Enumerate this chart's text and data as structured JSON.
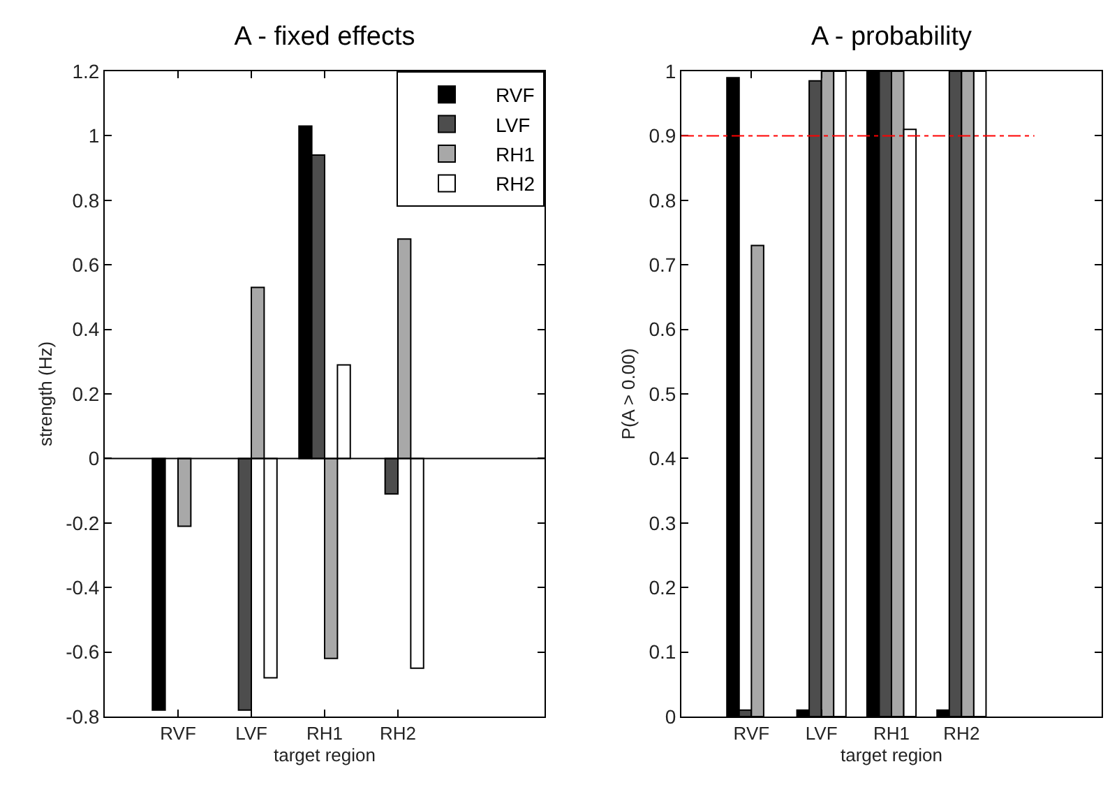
{
  "chart_data": [
    {
      "type": "bar",
      "title": "A - fixed effects",
      "xlabel": "target region",
      "ylabel": "strength (Hz)",
      "categories": [
        "RVF",
        "LVF",
        "RH1",
        "RH2"
      ],
      "series": [
        {
          "name": "RVF",
          "color": "#000000",
          "values": [
            -0.78,
            null,
            1.03,
            null
          ]
        },
        {
          "name": "LVF",
          "color": "#4d4d4d",
          "values": [
            null,
            -0.78,
            0.94,
            -0.11
          ]
        },
        {
          "name": "RH1",
          "color": "#a8a8a8",
          "values": [
            -0.21,
            0.53,
            -0.62,
            0.68
          ]
        },
        {
          "name": "RH2",
          "color": "#ffffff",
          "values": [
            null,
            -0.68,
            0.29,
            -0.65
          ]
        }
      ],
      "ylim": [
        -0.8,
        1.2
      ],
      "yticks": [
        -0.8,
        -0.6,
        -0.4,
        -0.2,
        0,
        0.2,
        0.4,
        0.6,
        0.8,
        1,
        1.2
      ],
      "ref_lines": [
        {
          "axis": "y",
          "value": 0,
          "color": "#000000",
          "line_style": "solid"
        }
      ],
      "grid": false,
      "legend": "top right"
    },
    {
      "type": "bar",
      "title": "A - probability",
      "xlabel": "target region",
      "ylabel": "P(A > 0.00)",
      "categories": [
        "RVF",
        "LVF",
        "RH1",
        "RH2"
      ],
      "series": [
        {
          "color": "#000000",
          "values": [
            0.99,
            0.01,
            1,
            0.01
          ]
        },
        {
          "color": "#4d4d4d",
          "values": [
            0.01,
            0.985,
            1,
            1
          ]
        },
        {
          "color": "#a8a8a8",
          "values": [
            0.73,
            1,
            1,
            1
          ]
        },
        {
          "color": "#ffffff",
          "values": [
            null,
            1,
            0.91,
            1
          ]
        }
      ],
      "ylim": [
        0,
        1
      ],
      "yticks": [
        0,
        0.1,
        0.2,
        0.3,
        0.4,
        0.5,
        0.6,
        0.7,
        0.8,
        0.9,
        1
      ],
      "ref_lines": [
        {
          "axis": "y",
          "value": 0.9,
          "color": "#ff0000",
          "line_style": "dashdot"
        }
      ],
      "grid": false,
      "legend": false
    }
  ]
}
